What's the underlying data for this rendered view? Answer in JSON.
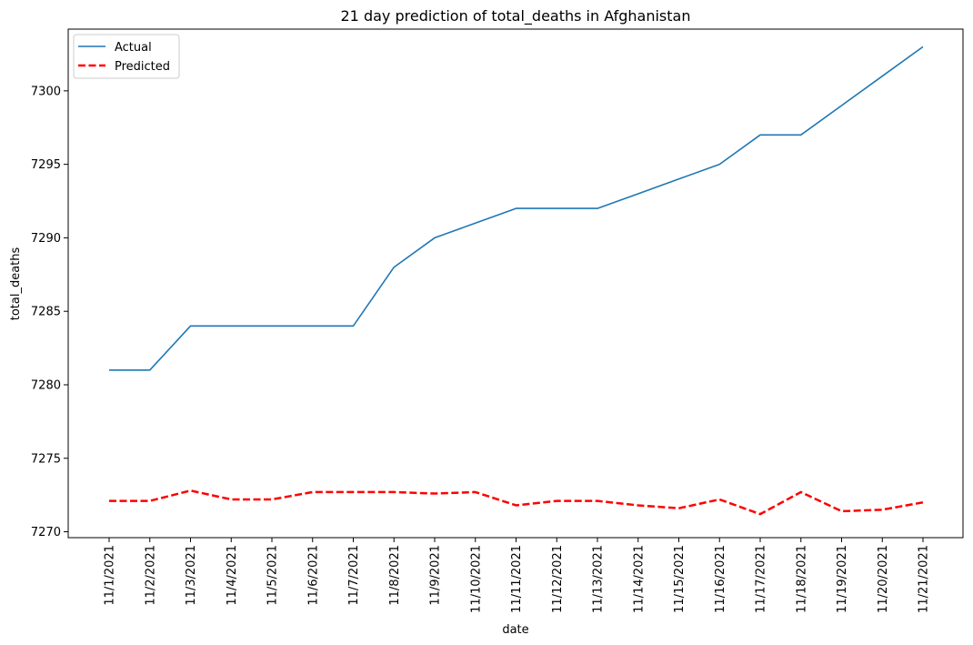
{
  "chart_data": {
    "type": "line",
    "title": "21 day prediction of total_deaths in Afghanistan",
    "xlabel": "date",
    "ylabel": "total_deaths",
    "x": [
      "11/1/2021",
      "11/2/2021",
      "11/3/2021",
      "11/4/2021",
      "11/5/2021",
      "11/6/2021",
      "11/7/2021",
      "11/8/2021",
      "11/9/2021",
      "11/10/2021",
      "11/11/2021",
      "11/12/2021",
      "11/13/2021",
      "11/14/2021",
      "11/15/2021",
      "11/16/2021",
      "11/17/2021",
      "11/18/2021",
      "11/19/2021",
      "11/20/2021",
      "11/21/2021"
    ],
    "ylim": [
      7269.6,
      7304.2
    ],
    "yticks": [
      7270,
      7275,
      7280,
      7285,
      7290,
      7295,
      7300
    ],
    "grid": false,
    "legend_position": "top-left",
    "series": [
      {
        "name": "Actual",
        "color": "#1f77b4",
        "style": "solid",
        "values": [
          7281,
          7281,
          7284,
          7284,
          7284,
          7284,
          7284,
          7288,
          7290,
          7291,
          7292,
          7292,
          7292,
          7293,
          7294,
          7295,
          7297,
          7297,
          7299,
          7301,
          7303
        ]
      },
      {
        "name": "Predicted",
        "color": "#ff0000",
        "style": "dashed",
        "values": [
          7272.1,
          7272.1,
          7272.8,
          7272.2,
          7272.2,
          7272.7,
          7272.7,
          7272.7,
          7272.6,
          7272.7,
          7271.8,
          7272.1,
          7272.1,
          7271.8,
          7271.6,
          7272.2,
          7271.2,
          7272.7,
          7271.4,
          7271.5,
          7272.0
        ]
      }
    ]
  }
}
